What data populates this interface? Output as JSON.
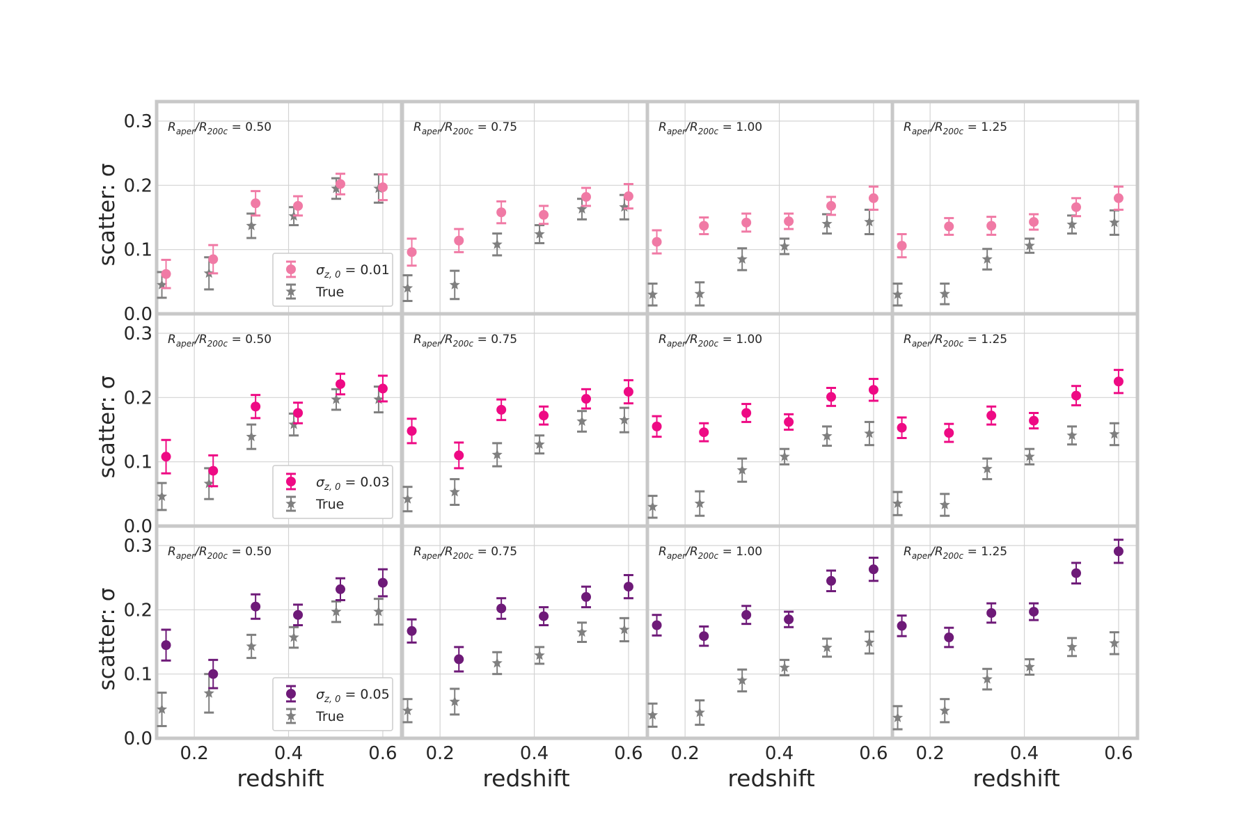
{
  "figure": {
    "ylabel": "scatter: σ",
    "xlabel": "redshift",
    "colors": {
      "row0": "#f07aa5",
      "row1": "#ee0a84",
      "row2": "#6e1a78",
      "true": "#7f7f7f",
      "grid": "#d3d3d3",
      "frame": "#c8c8c8"
    }
  },
  "chart_data": {
    "type": "scatter",
    "layout": "3 rows x 4 columns, shared axes",
    "x_ticks": [
      0.2,
      0.4,
      0.6
    ],
    "y_ticks": [
      0.0,
      0.1,
      0.2,
      0.3
    ],
    "xlim": [
      0.12,
      0.64
    ],
    "ylim": [
      0.0,
      0.3
    ],
    "grid": true,
    "legend_location": "lower-right of first column",
    "x": [
      0.14,
      0.24,
      0.33,
      0.42,
      0.51,
      0.6
    ],
    "columns": [
      {
        "label_prefix": "R",
        "label_sub1": "aper",
        "label_mid": "/R",
        "label_sub2": "200c",
        "label_value": " = 0.50"
      },
      {
        "label_prefix": "R",
        "label_sub1": "aper",
        "label_mid": "/R",
        "label_sub2": "200c",
        "label_value": " = 0.75"
      },
      {
        "label_prefix": "R",
        "label_sub1": "aper",
        "label_mid": "/R",
        "label_sub2": "200c",
        "label_value": " = 1.00"
      },
      {
        "label_prefix": "R",
        "label_sub1": "aper",
        "label_mid": "/R",
        "label_sub2": "200c",
        "label_value": " = 1.25"
      }
    ],
    "rows": [
      {
        "legend": {
          "sym": "σ",
          "sub": "z, 0",
          "eq": " = 0.01",
          "true_label": "True"
        },
        "panels": [
          {
            "photoz": [
              [
                0.062,
                0.022
              ],
              [
                0.085,
                0.022
              ],
              [
                0.172,
                0.019
              ],
              [
                0.168,
                0.015
              ],
              [
                0.202,
                0.016
              ],
              [
                0.197,
                0.02
              ]
            ],
            "true": [
              [
                0.045,
                0.02
              ],
              [
                0.063,
                0.025
              ],
              [
                0.137,
                0.019
              ],
              [
                0.152,
                0.014
              ],
              [
                0.195,
                0.016
              ],
              [
                0.195,
                0.022
              ]
            ]
          },
          {
            "photoz": [
              [
                0.096,
                0.021
              ],
              [
                0.114,
                0.018
              ],
              [
                0.158,
                0.017
              ],
              [
                0.154,
                0.014
              ],
              [
                0.182,
                0.014
              ],
              [
                0.183,
                0.019
              ]
            ],
            "true": [
              [
                0.04,
                0.02
              ],
              [
                0.045,
                0.022
              ],
              [
                0.108,
                0.017
              ],
              [
                0.124,
                0.014
              ],
              [
                0.163,
                0.016
              ],
              [
                0.166,
                0.019
              ]
            ]
          },
          {
            "photoz": [
              [
                0.112,
                0.018
              ],
              [
                0.137,
                0.013
              ],
              [
                0.142,
                0.014
              ],
              [
                0.144,
                0.012
              ],
              [
                0.168,
                0.014
              ],
              [
                0.18,
                0.018
              ]
            ],
            "true": [
              [
                0.03,
                0.017
              ],
              [
                0.031,
                0.018
              ],
              [
                0.085,
                0.017
              ],
              [
                0.105,
                0.012
              ],
              [
                0.14,
                0.015
              ],
              [
                0.143,
                0.019
              ]
            ]
          },
          {
            "photoz": [
              [
                0.106,
                0.018
              ],
              [
                0.136,
                0.013
              ],
              [
                0.137,
                0.014
              ],
              [
                0.143,
                0.012
              ],
              [
                0.166,
                0.014
              ],
              [
                0.18,
                0.018
              ]
            ],
            "true": [
              [
                0.03,
                0.017
              ],
              [
                0.031,
                0.016
              ],
              [
                0.085,
                0.016
              ],
              [
                0.106,
                0.011
              ],
              [
                0.139,
                0.014
              ],
              [
                0.142,
                0.019
              ]
            ]
          }
        ]
      },
      {
        "legend": {
          "sym": "σ",
          "sub": "z, 0",
          "eq": " = 0.03",
          "true_label": "True"
        },
        "panels": [
          {
            "photoz": [
              [
                0.108,
                0.026
              ],
              [
                0.086,
                0.024
              ],
              [
                0.186,
                0.018
              ],
              [
                0.176,
                0.016
              ],
              [
                0.221,
                0.016
              ],
              [
                0.214,
                0.02
              ]
            ],
            "true": [
              [
                0.046,
                0.021
              ],
              [
                0.066,
                0.024
              ],
              [
                0.139,
                0.019
              ],
              [
                0.158,
                0.017
              ],
              [
                0.197,
                0.016
              ],
              [
                0.197,
                0.02
              ]
            ]
          },
          {
            "photoz": [
              [
                0.148,
                0.019
              ],
              [
                0.11,
                0.02
              ],
              [
                0.181,
                0.016
              ],
              [
                0.172,
                0.014
              ],
              [
                0.198,
                0.015
              ],
              [
                0.209,
                0.018
              ]
            ],
            "true": [
              [
                0.042,
                0.019
              ],
              [
                0.053,
                0.02
              ],
              [
                0.111,
                0.018
              ],
              [
                0.127,
                0.014
              ],
              [
                0.163,
                0.016
              ],
              [
                0.165,
                0.019
              ]
            ]
          },
          {
            "photoz": [
              [
                0.155,
                0.016
              ],
              [
                0.146,
                0.014
              ],
              [
                0.176,
                0.014
              ],
              [
                0.162,
                0.012
              ],
              [
                0.201,
                0.014
              ],
              [
                0.212,
                0.017
              ]
            ],
            "true": [
              [
                0.03,
                0.017
              ],
              [
                0.035,
                0.019
              ],
              [
                0.087,
                0.018
              ],
              [
                0.108,
                0.012
              ],
              [
                0.14,
                0.015
              ],
              [
                0.144,
                0.018
              ]
            ]
          },
          {
            "photoz": [
              [
                0.153,
                0.016
              ],
              [
                0.145,
                0.014
              ],
              [
                0.172,
                0.014
              ],
              [
                0.164,
                0.012
              ],
              [
                0.203,
                0.015
              ],
              [
                0.225,
                0.018
              ]
            ],
            "true": [
              [
                0.035,
                0.018
              ],
              [
                0.033,
                0.017
              ],
              [
                0.089,
                0.016
              ],
              [
                0.108,
                0.012
              ],
              [
                0.141,
                0.014
              ],
              [
                0.143,
                0.017
              ]
            ]
          }
        ]
      },
      {
        "legend": {
          "sym": "σ",
          "sub": "z, 0",
          "eq": " = 0.05",
          "true_label": "True"
        },
        "panels": [
          {
            "photoz": [
              [
                0.145,
                0.024
              ],
              [
                0.1,
                0.022
              ],
              [
                0.205,
                0.019
              ],
              [
                0.192,
                0.016
              ],
              [
                0.232,
                0.017
              ],
              [
                0.242,
                0.021
              ]
            ],
            "true": [
              [
                0.045,
                0.026
              ],
              [
                0.07,
                0.03
              ],
              [
                0.143,
                0.018
              ],
              [
                0.157,
                0.016
              ],
              [
                0.197,
                0.016
              ],
              [
                0.197,
                0.02
              ]
            ]
          },
          {
            "photoz": [
              [
                0.167,
                0.018
              ],
              [
                0.123,
                0.019
              ],
              [
                0.202,
                0.016
              ],
              [
                0.19,
                0.014
              ],
              [
                0.22,
                0.016
              ],
              [
                0.236,
                0.018
              ]
            ],
            "true": [
              [
                0.043,
                0.018
              ],
              [
                0.057,
                0.02
              ],
              [
                0.117,
                0.017
              ],
              [
                0.129,
                0.013
              ],
              [
                0.165,
                0.015
              ],
              [
                0.169,
                0.018
              ]
            ]
          },
          {
            "photoz": [
              [
                0.176,
                0.016
              ],
              [
                0.159,
                0.015
              ],
              [
                0.192,
                0.014
              ],
              [
                0.185,
                0.012
              ],
              [
                0.245,
                0.016
              ],
              [
                0.263,
                0.018
              ]
            ],
            "true": [
              [
                0.036,
                0.018
              ],
              [
                0.04,
                0.019
              ],
              [
                0.09,
                0.017
              ],
              [
                0.11,
                0.012
              ],
              [
                0.141,
                0.014
              ],
              [
                0.149,
                0.017
              ]
            ]
          },
          {
            "photoz": [
              [
                0.175,
                0.016
              ],
              [
                0.157,
                0.015
              ],
              [
                0.195,
                0.015
              ],
              [
                0.197,
                0.013
              ],
              [
                0.257,
                0.016
              ],
              [
                0.291,
                0.018
              ]
            ],
            "true": [
              [
                0.032,
                0.018
              ],
              [
                0.043,
                0.018
              ],
              [
                0.092,
                0.016
              ],
              [
                0.111,
                0.012
              ],
              [
                0.142,
                0.014
              ],
              [
                0.148,
                0.017
              ]
            ]
          }
        ]
      }
    ]
  }
}
